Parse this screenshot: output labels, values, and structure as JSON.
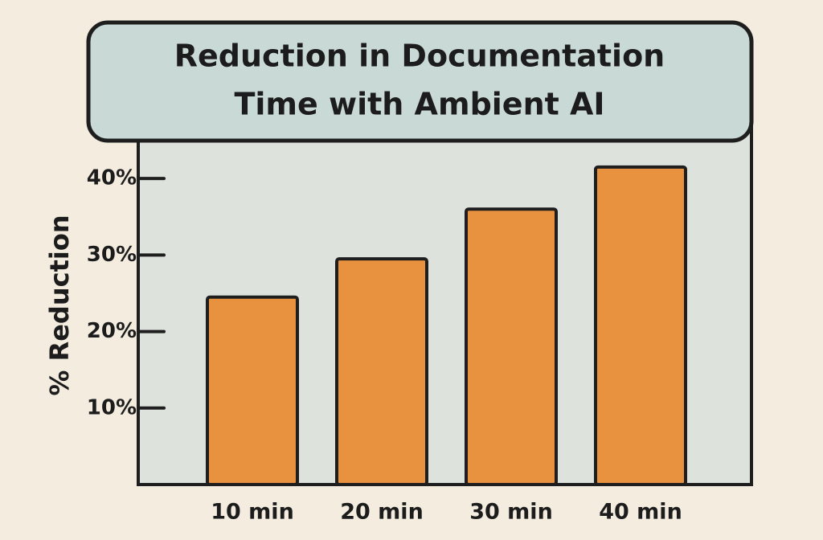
{
  "chart_data": {
    "type": "bar",
    "title": [
      "Reduction in Documentation",
      "Time with Ambient AI"
    ],
    "y_label": "% Reduction",
    "categories": [
      "10 min",
      "20 min",
      "30 min",
      "40 min"
    ],
    "values": [
      24.5,
      29.5,
      36,
      41.5
    ],
    "color": "#e8923f",
    "ylim": [
      0,
      46
    ],
    "yticks": [
      {
        "value": 10,
        "label": "10%"
      },
      {
        "value": 20,
        "label": "20%"
      },
      {
        "value": 30,
        "label": "30%"
      },
      {
        "value": 40,
        "label": "40%"
      }
    ]
  }
}
